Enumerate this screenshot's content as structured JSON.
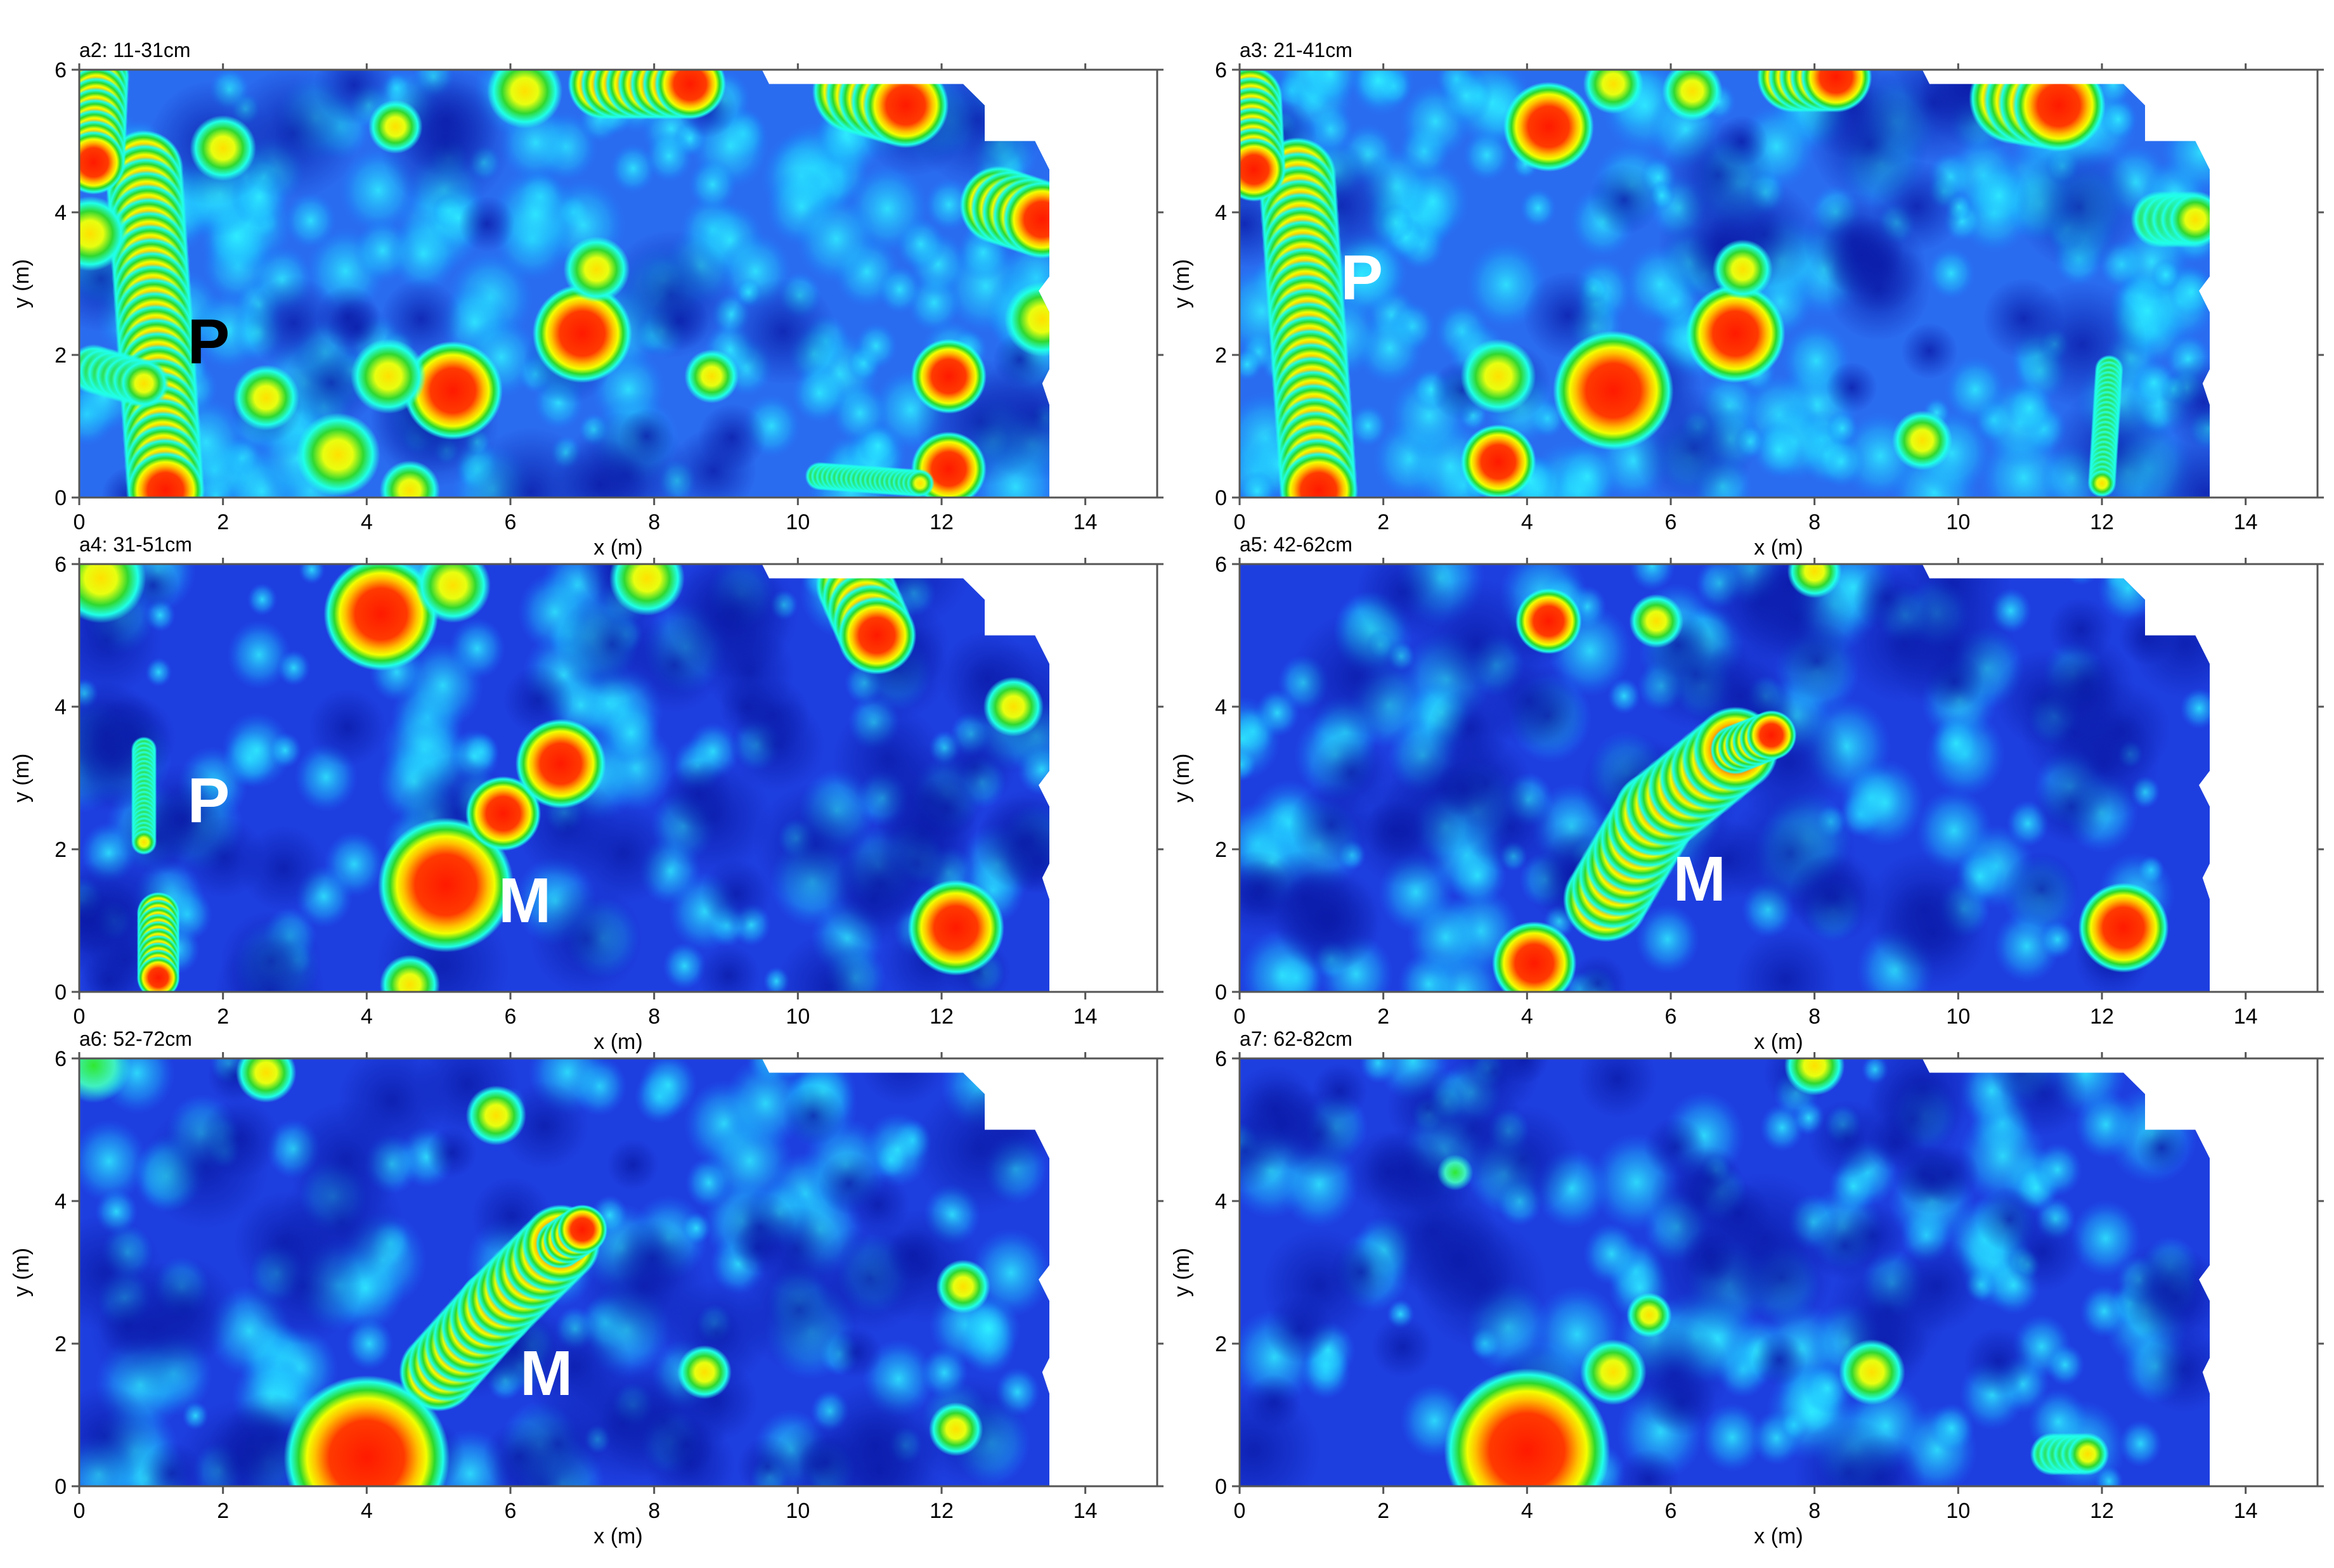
{
  "chart_data": [
    {
      "type": "heatmap",
      "title": "a2: 11-31cm",
      "xlabel": "x (m)",
      "ylabel": "y (m)",
      "xlim": [
        0,
        15
      ],
      "ylim": [
        0,
        6
      ],
      "xticks": [
        "0",
        "2",
        "4",
        "6",
        "8",
        "10",
        "12",
        "14"
      ],
      "yticks": [
        "0",
        "2",
        "4",
        "6"
      ],
      "annotations": [
        {
          "text": "P",
          "x": 1.8,
          "y": 2.2,
          "color": "#000000"
        }
      ],
      "anomalies": [
        {
          "x1": 0.9,
          "y1": 4.6,
          "x2": 1.2,
          "y2": 0.1,
          "w": 0.55,
          "level": "high"
        },
        {
          "x1": 0.25,
          "y1": 5.9,
          "x2": 0.2,
          "y2": 4.7,
          "w": 0.45,
          "level": "high"
        },
        {
          "x": 0.15,
          "y": 3.7,
          "r": 0.25,
          "level": "medium"
        },
        {
          "x1": 0.2,
          "y1": 1.8,
          "x2": 0.9,
          "y2": 1.6,
          "w": 0.35,
          "level": "medium"
        },
        {
          "x1": 7.3,
          "y1": 5.8,
          "x2": 8.5,
          "y2": 5.8,
          "w": 0.5,
          "level": "high"
        },
        {
          "x": 6.2,
          "y": 5.7,
          "r": 0.25,
          "level": "medium"
        },
        {
          "x1": 10.8,
          "y1": 5.7,
          "x2": 11.5,
          "y2": 5.5,
          "w": 0.6,
          "level": "high"
        },
        {
          "x1": 12.8,
          "y1": 4.1,
          "x2": 13.4,
          "y2": 3.9,
          "w": 0.55,
          "level": "high"
        },
        {
          "x": 13.4,
          "y": 2.5,
          "r": 0.25,
          "level": "medium"
        },
        {
          "x": 12.1,
          "y": 1.7,
          "r": 0.25,
          "level": "high"
        },
        {
          "x": 12.1,
          "y": 0.4,
          "r": 0.25,
          "level": "high"
        },
        {
          "x1": 10.3,
          "y1": 0.3,
          "x2": 11.7,
          "y2": 0.2,
          "w": 0.2,
          "level": "medium"
        },
        {
          "x": 7.0,
          "y": 2.3,
          "r": 0.33,
          "level": "high"
        },
        {
          "x": 5.2,
          "y": 1.5,
          "r": 0.33,
          "level": "high"
        },
        {
          "x": 4.3,
          "y": 1.7,
          "r": 0.25,
          "level": "medium"
        },
        {
          "x": 3.6,
          "y": 0.6,
          "r": 0.28,
          "level": "medium"
        },
        {
          "x": 2.6,
          "y": 1.4,
          "r": 0.22,
          "level": "medium"
        },
        {
          "x": 2.0,
          "y": 4.9,
          "r": 0.22,
          "level": "medium"
        },
        {
          "x": 7.2,
          "y": 3.2,
          "r": 0.22,
          "level": "medium"
        },
        {
          "x": 8.8,
          "y": 1.7,
          "r": 0.18,
          "level": "medium"
        },
        {
          "x": 4.4,
          "y": 5.2,
          "r": 0.18,
          "level": "medium"
        },
        {
          "x": 4.6,
          "y": 0.1,
          "r": 0.2,
          "level": "medium"
        }
      ]
    },
    {
      "type": "heatmap",
      "title": "a3: 21-41cm",
      "xlabel": "x (m)",
      "ylabel": "y (m)",
      "xlim": [
        0,
        15
      ],
      "ylim": [
        0,
        6
      ],
      "xticks": [
        "0",
        "2",
        "4",
        "6",
        "8",
        "10",
        "12",
        "14"
      ],
      "yticks": [
        "0",
        "2",
        "4",
        "6"
      ],
      "annotations": [
        {
          "text": "P",
          "x": 1.7,
          "y": 3.1,
          "color": "#ffffff"
        }
      ],
      "anomalies": [
        {
          "x1": 0.8,
          "y1": 4.5,
          "x2": 1.1,
          "y2": 0.1,
          "w": 0.55,
          "level": "high"
        },
        {
          "x1": 0.15,
          "y1": 5.6,
          "x2": 0.2,
          "y2": 4.6,
          "w": 0.45,
          "level": "high"
        },
        {
          "x1": 7.7,
          "y1": 5.9,
          "x2": 8.3,
          "y2": 5.9,
          "w": 0.5,
          "level": "high"
        },
        {
          "x1": 10.8,
          "y1": 5.6,
          "x2": 11.4,
          "y2": 5.5,
          "w": 0.65,
          "level": "high"
        },
        {
          "x": 4.3,
          "y": 5.2,
          "r": 0.3,
          "level": "high"
        },
        {
          "x": 5.2,
          "y": 1.5,
          "r": 0.4,
          "level": "high"
        },
        {
          "x": 6.9,
          "y": 2.3,
          "r": 0.33,
          "level": "high"
        },
        {
          "x1": 12.8,
          "y1": 3.9,
          "x2": 13.3,
          "y2": 3.9,
          "w": 0.4,
          "level": "medium"
        },
        {
          "x1": 12.1,
          "y1": 1.8,
          "x2": 12.0,
          "y2": 0.2,
          "w": 0.2,
          "level": "medium"
        },
        {
          "x": 3.6,
          "y": 0.5,
          "r": 0.25,
          "level": "high"
        },
        {
          "x": 3.6,
          "y": 1.7,
          "r": 0.25,
          "level": "medium"
        },
        {
          "x": 7.0,
          "y": 3.2,
          "r": 0.2,
          "level": "medium"
        },
        {
          "x": 5.2,
          "y": 5.8,
          "r": 0.2,
          "level": "medium"
        },
        {
          "x": 6.3,
          "y": 5.7,
          "r": 0.2,
          "level": "medium"
        },
        {
          "x": 9.5,
          "y": 0.8,
          "r": 0.2,
          "level": "medium"
        }
      ]
    },
    {
      "type": "heatmap",
      "title": "a4: 31-51cm",
      "xlabel": "x (m)",
      "ylabel": "y (m)",
      "xlim": [
        0,
        15
      ],
      "ylim": [
        0,
        6
      ],
      "xticks": [
        "0",
        "2",
        "4",
        "6",
        "8",
        "10",
        "12",
        "14"
      ],
      "yticks": [
        "0",
        "2",
        "4",
        "6"
      ],
      "annotations": [
        {
          "text": "P",
          "x": 1.8,
          "y": 2.7,
          "color": "#ffffff"
        },
        {
          "text": "M",
          "x": 6.2,
          "y": 1.3,
          "color": "#ffffff"
        }
      ],
      "anomalies": [
        {
          "x": 5.1,
          "y": 1.5,
          "r": 0.45,
          "level": "high"
        },
        {
          "x": 5.9,
          "y": 2.5,
          "r": 0.25,
          "level": "high"
        },
        {
          "x": 6.7,
          "y": 3.2,
          "r": 0.3,
          "level": "high"
        },
        {
          "x": 4.2,
          "y": 5.3,
          "r": 0.38,
          "level": "high"
        },
        {
          "x": 5.2,
          "y": 5.7,
          "r": 0.25,
          "level": "medium"
        },
        {
          "x": 0.3,
          "y": 5.8,
          "r": 0.3,
          "level": "medium"
        },
        {
          "x1": 10.8,
          "y1": 5.7,
          "x2": 11.1,
          "y2": 5.0,
          "w": 0.55,
          "level": "high"
        },
        {
          "x": 7.9,
          "y": 5.8,
          "r": 0.25,
          "level": "medium"
        },
        {
          "x": 12.2,
          "y": 0.9,
          "r": 0.32,
          "level": "high"
        },
        {
          "x1": 1.1,
          "y1": 1.1,
          "x2": 1.1,
          "y2": 0.2,
          "w": 0.3,
          "level": "high"
        },
        {
          "x1": 0.9,
          "y1": 3.4,
          "x2": 0.9,
          "y2": 2.1,
          "w": 0.18,
          "level": "medium"
        },
        {
          "x": 4.6,
          "y": 0.1,
          "r": 0.2,
          "level": "medium"
        },
        {
          "x": 13.0,
          "y": 4.0,
          "r": 0.2,
          "level": "medium"
        }
      ]
    },
    {
      "type": "heatmap",
      "title": "a5: 42-62cm",
      "xlabel": "x (m)",
      "ylabel": "y (m)",
      "xlim": [
        0,
        15
      ],
      "ylim": [
        0,
        6
      ],
      "xticks": [
        "0",
        "2",
        "4",
        "6",
        "8",
        "10",
        "12",
        "14"
      ],
      "yticks": [
        "0",
        "2",
        "4",
        "6"
      ],
      "annotations": [
        {
          "text": "M",
          "x": 6.4,
          "y": 1.6,
          "color": "#ffffff"
        }
      ],
      "anomalies": [
        {
          "x1": 5.1,
          "y1": 1.3,
          "x2": 5.8,
          "y2": 2.5,
          "w": 0.6,
          "level": "high"
        },
        {
          "x1": 5.8,
          "y1": 2.5,
          "x2": 6.9,
          "y2": 3.4,
          "w": 0.6,
          "level": "high"
        },
        {
          "x1": 6.9,
          "y1": 3.4,
          "x2": 7.4,
          "y2": 3.6,
          "w": 0.35,
          "level": "high"
        },
        {
          "x": 12.3,
          "y": 0.9,
          "r": 0.3,
          "level": "high"
        },
        {
          "x": 4.3,
          "y": 5.2,
          "r": 0.22,
          "level": "high"
        },
        {
          "x": 5.8,
          "y": 5.2,
          "r": 0.18,
          "level": "medium"
        },
        {
          "x": 4.1,
          "y": 0.4,
          "r": 0.28,
          "level": "high"
        },
        {
          "x": 8.0,
          "y": 5.9,
          "r": 0.18,
          "level": "medium"
        }
      ]
    },
    {
      "type": "heatmap",
      "title": "a6: 52-72cm",
      "xlabel": "x (m)",
      "ylabel": "y (m)",
      "xlim": [
        0,
        15
      ],
      "ylim": [
        0,
        6
      ],
      "xticks": [
        "0",
        "2",
        "4",
        "6",
        "8",
        "10",
        "12",
        "14"
      ],
      "yticks": [
        "0",
        "2",
        "4",
        "6"
      ],
      "annotations": [
        {
          "text": "M",
          "x": 6.5,
          "y": 1.6,
          "color": "#ffffff"
        }
      ],
      "anomalies": [
        {
          "x1": 5.0,
          "y1": 1.6,
          "x2": 5.8,
          "y2": 2.5,
          "w": 0.55,
          "level": "high"
        },
        {
          "x1": 5.8,
          "y1": 2.5,
          "x2": 6.7,
          "y2": 3.4,
          "w": 0.55,
          "level": "high"
        },
        {
          "x1": 6.7,
          "y1": 3.4,
          "x2": 7.0,
          "y2": 3.6,
          "w": 0.35,
          "level": "high"
        },
        {
          "x": 4.0,
          "y": 0.4,
          "r": 0.55,
          "level": "high"
        },
        {
          "x": 2.6,
          "y": 5.8,
          "r": 0.2,
          "level": "medium"
        },
        {
          "x": 5.8,
          "y": 5.2,
          "r": 0.2,
          "level": "medium"
        },
        {
          "x": 12.3,
          "y": 2.8,
          "r": 0.18,
          "level": "medium"
        },
        {
          "x": 8.7,
          "y": 1.6,
          "r": 0.18,
          "level": "medium"
        },
        {
          "x": 12.2,
          "y": 0.8,
          "r": 0.18,
          "level": "medium"
        },
        {
          "x": 0.2,
          "y": 5.9,
          "r": 0.25,
          "level": "low"
        }
      ]
    },
    {
      "type": "heatmap",
      "title": "a7: 62-82cm",
      "xlabel": "x (m)",
      "ylabel": "y (m)",
      "xlim": [
        0,
        15
      ],
      "ylim": [
        0,
        6
      ],
      "xticks": [
        "0",
        "2",
        "4",
        "6",
        "8",
        "10",
        "12",
        "14"
      ],
      "yticks": [
        "0",
        "2",
        "4",
        "6"
      ],
      "annotations": [],
      "anomalies": [
        {
          "x": 4.0,
          "y": 0.5,
          "r": 0.55,
          "level": "high"
        },
        {
          "x1": 11.3,
          "y1": 0.45,
          "x2": 11.8,
          "y2": 0.45,
          "w": 0.3,
          "level": "medium"
        },
        {
          "x": 5.2,
          "y": 1.6,
          "r": 0.22,
          "level": "medium"
        },
        {
          "x": 8.8,
          "y": 1.6,
          "r": 0.22,
          "level": "medium"
        },
        {
          "x": 5.7,
          "y": 2.4,
          "r": 0.15,
          "level": "medium"
        },
        {
          "x": 8.0,
          "y": 5.9,
          "r": 0.2,
          "level": "medium"
        },
        {
          "x": 3.0,
          "y": 4.4,
          "r": 0.12,
          "level": "low"
        }
      ]
    }
  ]
}
